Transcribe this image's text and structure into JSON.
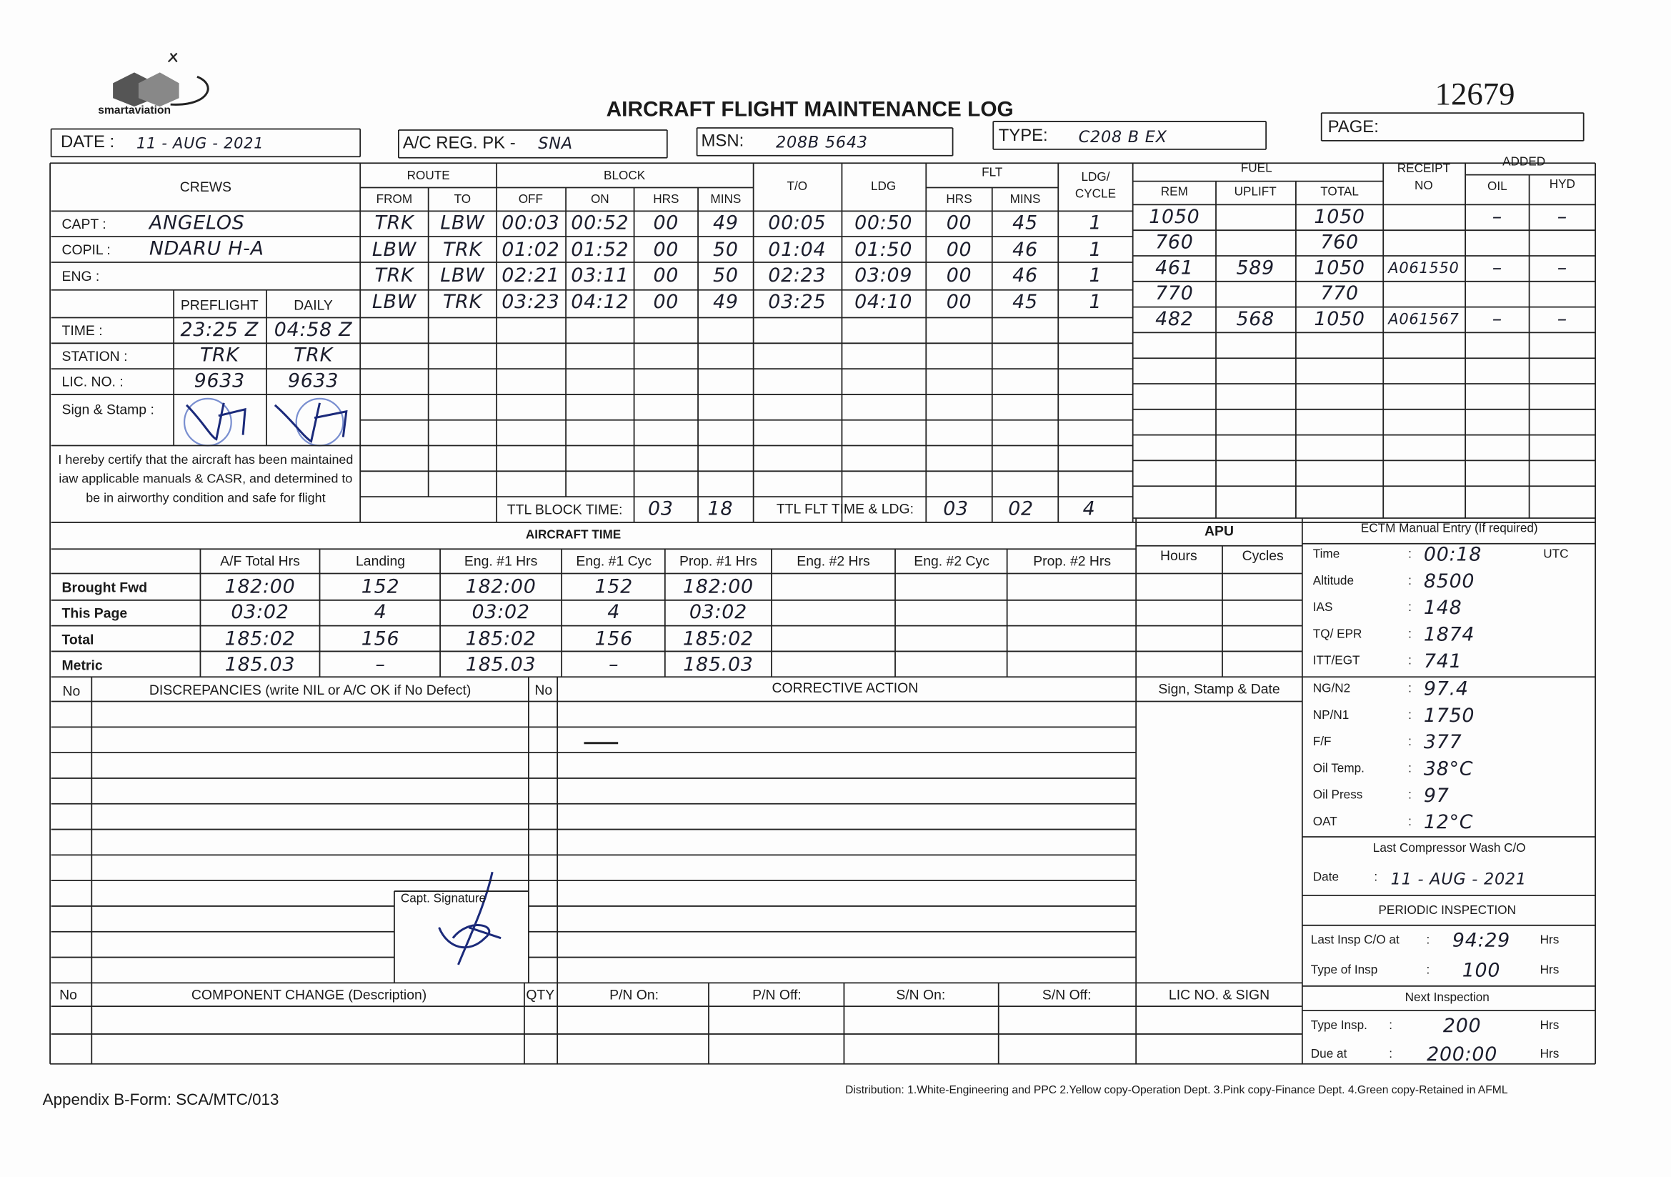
{
  "header": {
    "logo": "smartaviation",
    "form_number": "12679",
    "title": "AIRCRAFT FLIGHT MAINTENANCE LOG",
    "date_label": "DATE :",
    "date": "11 - AUG - 2021",
    "reg_label": "A/C REG. PK -",
    "reg": "SNA",
    "msn_label": "MSN:",
    "msn": "208B 5643",
    "type_label": "TYPE:",
    "type": "C208 B EX",
    "page_label": "PAGE:"
  },
  "crews": {
    "header": "CREWS",
    "rows": [
      {
        "role": "CAPT :",
        "name": "ANGELOS"
      },
      {
        "role": "COPIL :",
        "name": "NDARU H-A"
      },
      {
        "role": "ENG :"
      }
    ],
    "preflight_label": "PREFLIGHT",
    "daily_label": "DAILY",
    "checks": [
      {
        "label": "TIME :",
        "preflight": "23:25 Z",
        "daily": "04:58 Z"
      },
      {
        "label": "STATION :",
        "preflight": "TRK",
        "daily": "TRK"
      },
      {
        "label": "LIC. NO. :",
        "preflight": "9633",
        "daily": "9633"
      }
    ],
    "sign_label": "Sign & Stamp :",
    "certification": "I hereby certify that the aircraft has been maintained iaw applicable manuals & CASR, and determined to be in airworthy condition and safe for flight"
  },
  "flights": {
    "group_headers": {
      "route": "ROUTE",
      "block": "BLOCK",
      "flt": "FLT"
    },
    "columns": [
      "FROM",
      "TO",
      "OFF",
      "ON",
      "HRS",
      "MINS",
      "T/O",
      "LDG",
      "HRS",
      "MINS",
      "LDG/ CYCLE"
    ],
    "rows": [
      [
        "TRK",
        "LBW",
        "00:03",
        "00:52",
        "00",
        "49",
        "00:05",
        "00:50",
        "00",
        "45",
        "1"
      ],
      [
        "LBW",
        "TRK",
        "01:02",
        "01:52",
        "00",
        "50",
        "01:04",
        "01:50",
        "00",
        "46",
        "1"
      ],
      [
        "TRK",
        "LBW",
        "02:21",
        "03:11",
        "00",
        "50",
        "02:23",
        "03:09",
        "00",
        "46",
        "1"
      ],
      [
        "LBW",
        "TRK",
        "03:23",
        "04:12",
        "00",
        "49",
        "03:25",
        "04:10",
        "00",
        "45",
        "1"
      ]
    ],
    "total_block_label": "TTL BLOCK TIME:",
    "total_block": [
      "03",
      "18"
    ],
    "total_flt_label": "TTL FLT TIME & LDG:",
    "total_flt": [
      "03",
      "02",
      "4"
    ]
  },
  "fuel": {
    "header": "FUEL",
    "columns": [
      "REM",
      "UPLIFT",
      "TOTAL"
    ],
    "receipt_label": "RECEIPT NO",
    "added_label": "ADDED",
    "added_columns": [
      "OIL",
      "HYD"
    ],
    "rows": [
      [
        "1050",
        null,
        "1050",
        null,
        "–",
        "–"
      ],
      [
        "760",
        null,
        "760",
        null,
        null,
        null
      ],
      [
        "461",
        "589",
        "1050",
        "A061550",
        "–",
        "–"
      ],
      [
        "770",
        null,
        "770",
        null,
        null,
        null
      ],
      [
        "482",
        "568",
        "1050",
        "A061567",
        "–",
        "–"
      ]
    ]
  },
  "aircraft_time": {
    "title": "AIRCRAFT TIME",
    "columns": [
      "A/F Total Hrs",
      "Landing",
      "Eng. #1 Hrs",
      "Eng. #1 Cyc",
      "Prop. #1 Hrs",
      "Eng. #2 Hrs",
      "Eng. #2 Cyc",
      "Prop. #2 Hrs"
    ],
    "rows": [
      {
        "label": "Brought Fwd",
        "values": [
          "182:00",
          "152",
          "182:00",
          "152",
          "182:00"
        ]
      },
      {
        "label": "This Page",
        "values": [
          "03:02",
          "4",
          "03:02",
          "4",
          "03:02"
        ]
      },
      {
        "label": "Total",
        "values": [
          "185:02",
          "156",
          "185:02",
          "156",
          "185:02"
        ]
      },
      {
        "label": "Metric",
        "values": [
          "185.03",
          "–",
          "185.03",
          "–",
          "185.03"
        ]
      }
    ],
    "apu": {
      "title": "APU",
      "columns": [
        "Hours",
        "Cycles"
      ]
    }
  },
  "ectm": {
    "title": "ECTM Manual Entry (If required)",
    "separator": ":",
    "items": [
      {
        "label": "Time",
        "value": "00:18",
        "unit": "UTC"
      },
      {
        "label": "Altitude",
        "value": "8500"
      },
      {
        "label": "IAS",
        "value": "148"
      },
      {
        "label": "TQ/ EPR",
        "value": "1874"
      },
      {
        "label": "ITT/EGT",
        "value": "741"
      },
      {
        "label": "NG/N2",
        "value": "97.4"
      },
      {
        "label": "NP/N1",
        "value": "1750"
      },
      {
        "label": "F/F",
        "value": "377"
      },
      {
        "label": "Oil Temp.",
        "value": "38°C"
      },
      {
        "label": "Oil Press",
        "value": "97"
      },
      {
        "label": "OAT",
        "value": "12°C"
      }
    ]
  },
  "compressor_wash": {
    "title": "Last Compressor Wash C/O",
    "date_label": "Date",
    "date": "11 - AUG - 2021"
  },
  "periodic": {
    "title": "PERIODIC INSPECTION",
    "items": [
      {
        "label": "Last Insp C/O at",
        "value": "94:29",
        "unit": "Hrs"
      },
      {
        "label": "Type of Insp",
        "value": "100",
        "unit": "Hrs"
      }
    ],
    "next_title": "Next Inspection",
    "next_items": [
      {
        "label": "Type Insp.",
        "value": "200",
        "unit": "Hrs"
      },
      {
        "label": "Due at",
        "value": "200:00",
        "unit": "Hrs"
      }
    ]
  },
  "discrepancies": {
    "no_label": "No",
    "title": "DISCREPANCIES (write NIL or A/C OK if No Defect)",
    "action_no_label": "No",
    "action_title": "CORRECTIVE ACTION",
    "sign_title": "Sign, Stamp & Date",
    "captain_signature_label": "Capt. Signature"
  },
  "component_change": {
    "columns": [
      "No",
      "COMPONENT CHANGE (Description)",
      "QTY",
      "P/N On:",
      "P/N Off:",
      "S/N On:",
      "S/N Off:",
      "LIC NO. & SIGN"
    ]
  },
  "footer": {
    "form": "Appendix B-Form: SCA/MTC/013",
    "distribution": "Distribution: 1.White-Engineering and PPC  2.Yellow copy-Operation Dept.  3.Pink copy-Finance Dept.  4.Green copy-Retained in AFML"
  }
}
